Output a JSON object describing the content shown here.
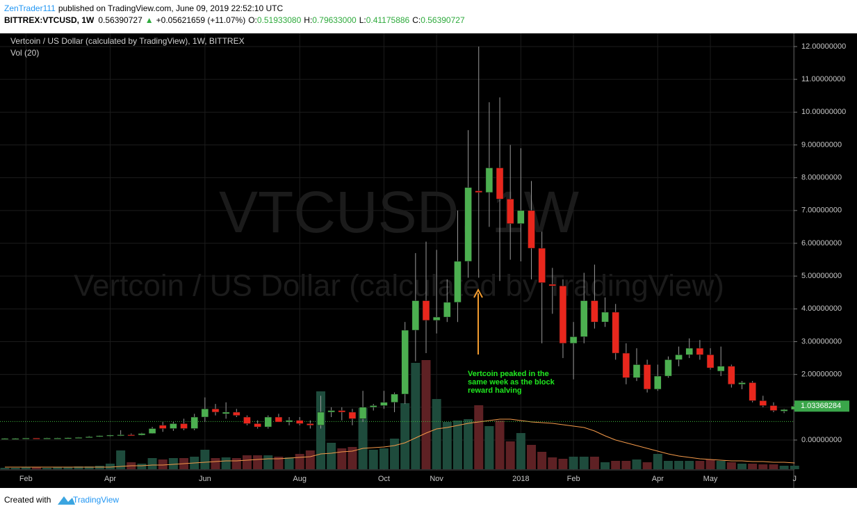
{
  "header": {
    "user": "ZenTrader111",
    "published": "published on TradingView.com, June 09, 2019 22:52:10 UTC",
    "symbol": "BITTREX:VTCUSD, 1W",
    "last": "0.56390727",
    "arrow": "▲",
    "change": "+0.05621659 (+11.07%)",
    "o_label": "O:",
    "o": "0.51933080",
    "h_label": "H:",
    "h": "0.79633000",
    "l_label": "L:",
    "l": "0.41175886",
    "c_label": "C:",
    "c": "0.56390727"
  },
  "footer": {
    "created": "Created with",
    "brand": "TradingView"
  },
  "chart_data": {
    "type": "candlestick",
    "title": "Vertcoin / US Dollar (calculated by TradingView), 1W, BITTREX",
    "volume_title": "Vol (20)",
    "watermark": [
      "VTCUSD, 1W",
      "Vertcoin / US Dollar (calculated by TradingView)"
    ],
    "annotation": "Vertcoin peaked in the same week as the block reward halving",
    "categories": [
      null,
      null,
      "Feb",
      null,
      null,
      null,
      null,
      null,
      null,
      null,
      "Apr",
      null,
      null,
      null,
      null,
      null,
      null,
      null,
      null,
      "Jun",
      null,
      null,
      null,
      null,
      null,
      null,
      null,
      null,
      "Aug",
      null,
      null,
      null,
      null,
      null,
      null,
      null,
      "Oct",
      null,
      null,
      null,
      null,
      "Nov",
      null,
      null,
      null,
      null,
      null,
      null,
      null,
      "2018",
      null,
      null,
      null,
      null,
      "Feb",
      null,
      null,
      null,
      null,
      null,
      null,
      null,
      "Apr",
      null,
      null,
      null,
      null,
      "May",
      null,
      null,
      null,
      null,
      null,
      null,
      null,
      "J"
    ],
    "open": [
      0.05,
      0.05,
      0.05,
      0.06,
      0.05,
      0.06,
      0.06,
      0.07,
      0.08,
      0.1,
      0.13,
      0.15,
      0.16,
      0.15,
      0.2,
      0.45,
      0.35,
      0.5,
      0.35,
      0.7,
      0.95,
      0.8,
      0.85,
      0.7,
      0.5,
      0.4,
      0.7,
      0.55,
      0.6,
      0.5,
      0.45,
      0.85,
      0.9,
      0.85,
      0.65,
      1.0,
      1.05,
      1.15,
      1.4,
      3.35,
      4.25,
      3.65,
      3.75,
      4.2,
      5.45,
      7.6,
      7.55,
      8.3,
      7.35,
      6.6,
      7.0,
      5.85,
      4.75,
      4.7,
      2.95,
      3.15,
      4.25,
      3.6,
      3.9,
      2.65,
      1.9,
      2.3,
      1.55,
      1.95,
      2.45,
      2.6,
      2.8,
      2.6,
      2.1,
      2.25,
      1.7,
      1.75,
      1.2,
      1.05,
      0.88,
      0.93
    ],
    "high": [
      0.06,
      0.06,
      0.06,
      0.06,
      0.07,
      0.07,
      0.08,
      0.09,
      0.12,
      0.14,
      0.16,
      0.3,
      0.2,
      0.22,
      0.4,
      0.55,
      0.55,
      0.65,
      0.8,
      1.3,
      1.1,
      1.15,
      0.95,
      0.75,
      0.6,
      0.75,
      0.8,
      0.7,
      0.7,
      0.6,
      1.35,
      1.0,
      1.0,
      0.95,
      1.5,
      1.1,
      1.5,
      1.45,
      3.6,
      5.7,
      6.05,
      5.8,
      4.9,
      7.0,
      9.45,
      12.0,
      10.3,
      10.45,
      9.0,
      8.9,
      7.9,
      6.35,
      5.25,
      4.9,
      3.6,
      5.1,
      5.35,
      4.35,
      4.15,
      2.95,
      2.8,
      2.45,
      2.3,
      2.55,
      2.85,
      3.1,
      3.05,
      2.8,
      2.85,
      2.3,
      1.8,
      1.8,
      1.35,
      1.15,
      0.95,
      1.1
    ],
    "low": [
      0.04,
      0.04,
      0.05,
      0.05,
      0.05,
      0.05,
      0.06,
      0.06,
      0.07,
      0.09,
      0.1,
      0.12,
      0.13,
      0.14,
      0.19,
      0.25,
      0.28,
      0.3,
      0.3,
      0.55,
      0.75,
      0.65,
      0.7,
      0.45,
      0.35,
      0.35,
      0.55,
      0.45,
      0.45,
      0.35,
      0.35,
      0.7,
      0.6,
      0.45,
      0.55,
      0.9,
      0.95,
      0.85,
      1.1,
      2.4,
      2.65,
      3.25,
      3.6,
      3.6,
      4.95,
      4.95,
      6.5,
      4.85,
      5.5,
      5.45,
      4.9,
      2.95,
      3.85,
      2.5,
      1.85,
      2.95,
      3.4,
      3.45,
      2.45,
      1.7,
      1.8,
      1.45,
      1.5,
      1.9,
      2.25,
      2.5,
      2.45,
      2.15,
      1.95,
      1.6,
      1.55,
      1.15,
      1.0,
      0.85,
      0.82,
      0.9
    ],
    "close": [
      0.05,
      0.05,
      0.06,
      0.05,
      0.06,
      0.06,
      0.07,
      0.08,
      0.1,
      0.13,
      0.15,
      0.16,
      0.15,
      0.2,
      0.35,
      0.35,
      0.5,
      0.35,
      0.7,
      0.95,
      0.85,
      0.85,
      0.75,
      0.5,
      0.4,
      0.7,
      0.55,
      0.6,
      0.5,
      0.45,
      0.85,
      0.9,
      0.85,
      0.65,
      1.0,
      1.05,
      1.15,
      1.4,
      3.35,
      4.25,
      3.65,
      3.75,
      4.2,
      5.45,
      7.7,
      7.55,
      8.3,
      7.35,
      6.6,
      7.0,
      5.85,
      4.8,
      4.7,
      2.95,
      3.15,
      4.25,
      3.6,
      3.9,
      2.65,
      1.9,
      2.3,
      1.55,
      1.95,
      2.45,
      2.6,
      2.8,
      2.6,
      2.2,
      2.25,
      1.7,
      1.75,
      1.2,
      1.05,
      0.9,
      0.93,
      1.03
    ],
    "up_color": "#4caf50",
    "down_color": "#e8271d",
    "volume": {
      "ylim": [
        0,
        160
      ],
      "up_color": "#1e4b3c",
      "down_color": "#5e2124",
      "ma_color": "#f59a4a",
      "values": [
        2,
        2,
        3,
        3,
        2,
        3,
        3,
        4,
        4,
        5,
        8,
        27,
        10,
        8,
        16,
        14,
        16,
        16,
        18,
        28,
        16,
        17,
        16,
        20,
        20,
        20,
        18,
        17,
        22,
        27,
        112,
        38,
        30,
        32,
        88,
        28,
        30,
        44,
        95,
        153,
        157,
        101,
        68,
        70,
        72,
        92,
        62,
        70,
        40,
        52,
        35,
        25,
        17,
        15,
        18,
        18,
        18,
        10,
        12,
        12,
        14,
        10,
        22,
        12,
        12,
        12,
        12,
        14,
        12,
        10,
        8,
        8,
        7,
        7,
        5,
        5
      ],
      "ma": [
        3,
        3,
        3,
        3,
        3,
        3,
        3,
        3,
        3,
        3,
        3,
        4,
        5,
        5,
        6,
        6,
        7,
        8,
        9,
        10,
        11,
        12,
        12,
        13,
        14,
        15,
        15,
        16,
        17,
        18,
        22,
        23,
        25,
        26,
        30,
        31,
        32,
        34,
        38,
        45,
        52,
        58,
        60,
        63,
        66,
        68,
        70,
        72,
        72,
        70,
        68,
        67,
        66,
        64,
        62,
        60,
        55,
        48,
        42,
        38,
        34,
        30,
        26,
        22,
        19,
        17,
        15,
        14,
        13,
        12,
        12,
        11,
        11,
        10,
        10,
        9
      ]
    },
    "ylim": [
      -0.89,
      12.36
    ],
    "yticks": [
      {
        "value": 0,
        "label": "0.00000000"
      },
      {
        "value": 1,
        "label": "1.00000000"
      },
      {
        "value": 2,
        "label": "2.00000000"
      },
      {
        "value": 3,
        "label": "3.00000000"
      },
      {
        "value": 4,
        "label": "4.00000000"
      },
      {
        "value": 5,
        "label": "5.00000000"
      },
      {
        "value": 6,
        "label": "6.00000000"
      },
      {
        "value": 7,
        "label": "7.00000000"
      },
      {
        "value": 8,
        "label": "8.00000000"
      },
      {
        "value": 9,
        "label": "9.00000000"
      },
      {
        "value": 10,
        "label": "10.00000000"
      },
      {
        "value": 11,
        "label": "11.00000000"
      },
      {
        "value": 12,
        "label": "12.00000000"
      }
    ],
    "price_line": 0.56390727,
    "last_price": {
      "value": 1.03368284,
      "label": "1.03368284"
    },
    "grid": true
  }
}
